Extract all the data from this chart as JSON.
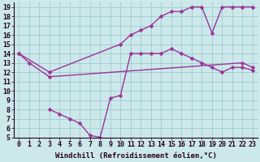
{
  "background_color": "#cce8ea",
  "grid_color": "#9fccd0",
  "line_color": "#993399",
  "marker": "D",
  "marker_size": 2.5,
  "line_width": 1.0,
  "xlabel": "Windchill (Refroidissement éolien,°C)",
  "xlabel_fontsize": 6.5,
  "tick_fontsize": 6,
  "xlim": [
    -0.5,
    23.5
  ],
  "ylim": [
    5,
    19.5
  ],
  "xticks": [
    0,
    1,
    2,
    3,
    4,
    5,
    6,
    7,
    8,
    9,
    10,
    11,
    12,
    13,
    14,
    15,
    16,
    17,
    18,
    19,
    20,
    21,
    22,
    23
  ],
  "yticks": [
    5,
    6,
    7,
    8,
    9,
    10,
    11,
    12,
    13,
    14,
    15,
    16,
    17,
    18,
    19
  ],
  "line1_x": [
    0,
    1,
    3,
    22,
    23
  ],
  "line1_y": [
    14,
    13,
    11.5,
    13,
    12.5
  ],
  "line2_x": [
    0,
    3,
    10,
    11,
    12,
    13,
    14,
    15,
    16,
    17,
    18,
    19,
    20,
    21,
    22,
    23
  ],
  "line2_y": [
    14,
    12,
    15,
    16,
    16.5,
    17,
    18,
    18.5,
    18.5,
    19,
    19,
    16.2,
    19,
    19,
    19,
    19
  ],
  "line3_x": [
    3,
    4,
    5,
    6,
    7,
    8,
    9,
    10,
    11,
    12,
    13,
    14,
    15,
    16,
    17,
    18,
    19,
    20,
    21,
    22,
    23
  ],
  "line3_y": [
    8,
    7.5,
    7,
    6.5,
    5.2,
    5.0,
    9.2,
    9.5,
    14,
    14,
    14,
    14,
    14.5,
    14.0,
    13.5,
    13.0,
    12.5,
    12.0,
    12.5,
    12.5,
    12.2
  ]
}
